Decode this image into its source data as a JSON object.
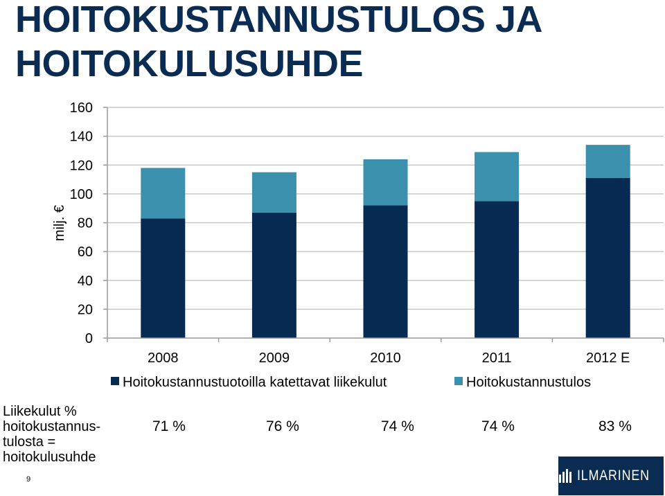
{
  "title": {
    "line1": "HOITOKUSTANNUSTULOS JA",
    "line2": "HOITOKULUSUHDE"
  },
  "colors": {
    "title": "#0a2b52",
    "series1": "#062a51",
    "series2": "#3b90ad",
    "logo_bg": "#0a2b52"
  },
  "chart_data": {
    "type": "bar",
    "stacked": true,
    "categories": [
      "2008",
      "2009",
      "2010",
      "2011",
      "2012 E"
    ],
    "series": [
      {
        "name": "Hoitokustannustuotoilla katettavat liikekulut",
        "values": [
          83,
          87,
          92,
          95,
          111
        ]
      },
      {
        "name": "Hoitokustannustulos",
        "values": [
          35,
          28,
          32,
          34,
          23
        ]
      }
    ],
    "ylabel": "milj. €",
    "ylim": [
      0,
      160
    ],
    "yticks": [
      0,
      20,
      40,
      60,
      80,
      100,
      120,
      140,
      160
    ],
    "grid": true,
    "legend": "bottom"
  },
  "ratio_row": {
    "label_lines": [
      "Liikekulut %",
      "hoitokustannus-",
      "tulosta =",
      "hoitokulusuhde"
    ],
    "values": [
      "71 %",
      "76 %",
      "74 %",
      "74 %",
      "83 %"
    ]
  },
  "page_number": "9",
  "logo": {
    "text": "ILMARINEN",
    "icon": "ilmarinen-logo-icon"
  }
}
